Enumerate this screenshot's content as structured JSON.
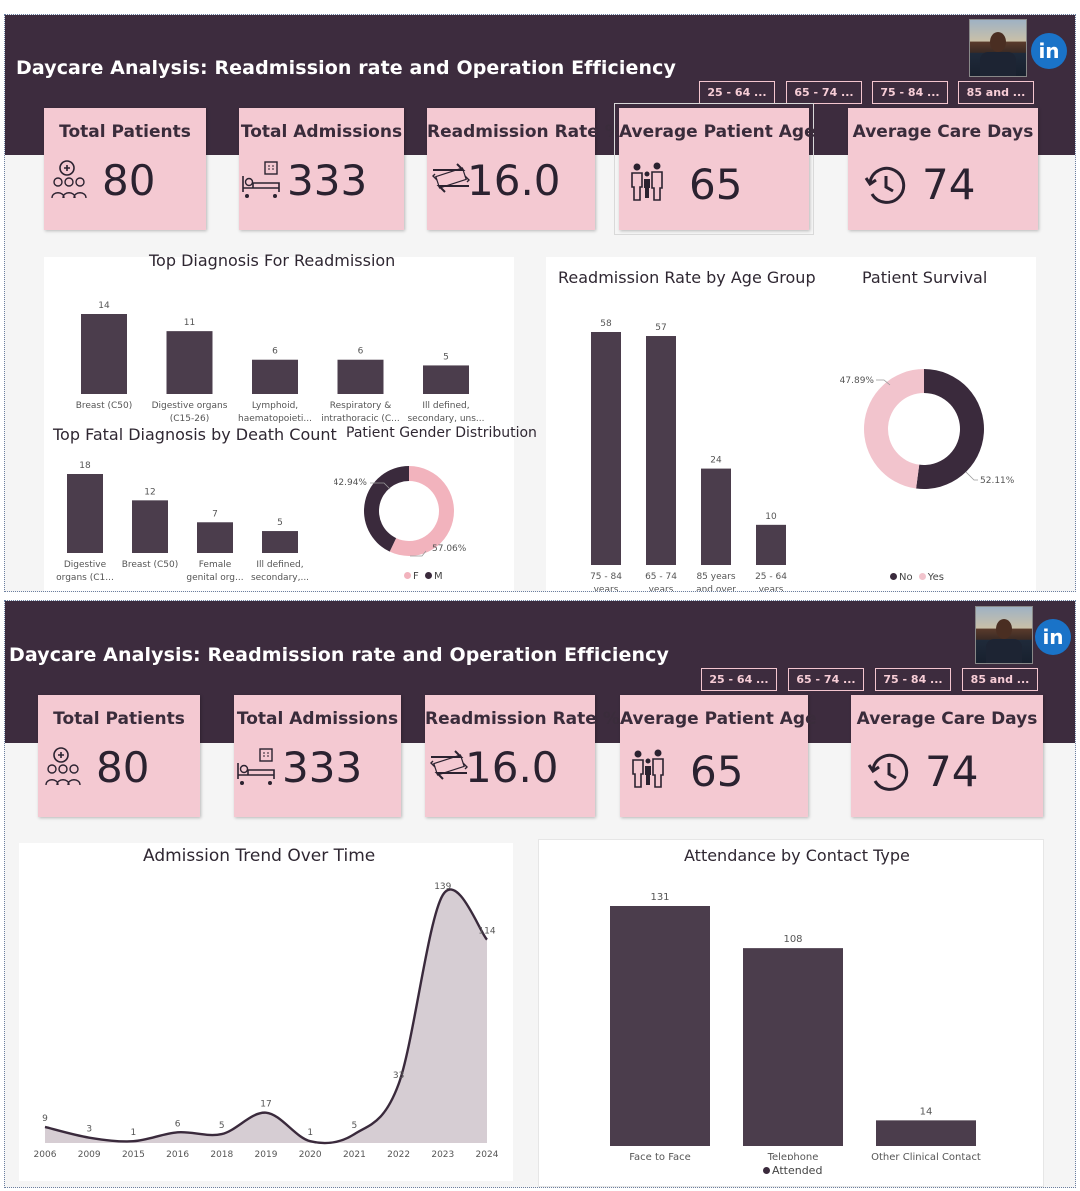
{
  "dashboard": {
    "title": "Daycare Analysis: Readmission rate and Operation Efficiency",
    "linkedin_label": "in",
    "slicers": [
      "25 - 64 ...",
      "65 - 74 ...",
      "75 - 84 ...",
      "85 and ..."
    ],
    "kpis": [
      {
        "label": "Total Patients",
        "value": "80",
        "icon": "patients-icon"
      },
      {
        "label": "Total Admissions",
        "value": "333",
        "icon": "hospital-bed-icon"
      },
      {
        "label": "Readmission Rate %",
        "value": "16.0",
        "icon": "exchange-arrows-icon"
      },
      {
        "label": "Average Patient Age",
        "value": "65",
        "icon": "family-icon"
      },
      {
        "label": "Average Care Days",
        "value": "74",
        "icon": "clock-history-icon"
      }
    ],
    "colors": {
      "header": "#3d2c3e",
      "card": "#f4c9d2",
      "bar": "#4b3d4c",
      "dark": "#3a2a3c",
      "pink": "#f2c4cd"
    }
  },
  "chart_data": [
    {
      "type": "bar",
      "title": "Top Diagnosis For Readmission",
      "categories": [
        "Breast (C50)",
        "Digestive organs (C15-26)",
        "Lymphoid, haematopoieti...",
        "Respiratory & intrathoracic (C...",
        "Ill defined, secondary, uns..."
      ],
      "category_lines": [
        [
          "Breast (C50)"
        ],
        [
          "Digestive organs",
          "(C15-26)"
        ],
        [
          "Lymphoid,",
          "haematopoieti..."
        ],
        [
          "Respiratory &",
          "intrathoracic (C..."
        ],
        [
          "Ill defined,",
          "secondary, uns..."
        ]
      ],
      "values": [
        14,
        11,
        6,
        6,
        5
      ]
    },
    {
      "type": "bar",
      "title": "Top Fatal Diagnosis by Death Count",
      "categories": [
        "Digestive organs (C1...",
        "Breast (C50)",
        "Female genital org...",
        "Ill defined, secondary,..."
      ],
      "category_lines": [
        [
          "Digestive",
          "organs (C1..."
        ],
        [
          "Breast (C50)"
        ],
        [
          "Female",
          "genital org..."
        ],
        [
          "Ill defined,",
          "secondary,..."
        ]
      ],
      "values": [
        18,
        12,
        7,
        5
      ]
    },
    {
      "type": "pie",
      "title": "Patient Gender Distribution",
      "labels": [
        "F",
        "M"
      ],
      "values": [
        57.06,
        42.94
      ],
      "value_labels": [
        "57.06%",
        "42.94%"
      ],
      "colors": [
        "#f2b3bd",
        "#3a2a3c"
      ]
    },
    {
      "type": "bar",
      "title": "Readmission Rate by Age Group",
      "categories": [
        "75 - 84 years",
        "65 - 74 years",
        "85 years and over",
        "25 - 64 years"
      ],
      "category_lines": [
        [
          "75 - 84",
          "years"
        ],
        [
          "65 - 74",
          "years"
        ],
        [
          "85 years",
          "and over"
        ],
        [
          "25 - 64",
          "years"
        ]
      ],
      "values": [
        58,
        57,
        24,
        10
      ]
    },
    {
      "type": "pie",
      "title": "Patient Survival",
      "labels": [
        "No",
        "Yes"
      ],
      "values": [
        52.11,
        47.89
      ],
      "value_labels": [
        "52.11%",
        "47.89%"
      ],
      "colors": [
        "#3a2a3c",
        "#f2c4cd"
      ]
    },
    {
      "type": "area",
      "title": "Admission Trend Over Time",
      "x": [
        "2006",
        "2009",
        "2015",
        "2016",
        "2018",
        "2019",
        "2020",
        "2021",
        "2022",
        "2023",
        "2024"
      ],
      "values": [
        9,
        3,
        1,
        6,
        5,
        17,
        1,
        5,
        33,
        139,
        114
      ],
      "point_labels": [
        "9",
        "3",
        "1",
        "6",
        "5",
        "17",
        "1",
        "5",
        "33",
        "139",
        "114"
      ]
    },
    {
      "type": "bar",
      "title": "Attendance by Contact Type",
      "categories": [
        "Face to Face",
        "Telephone",
        "Other Clinical Contact"
      ],
      "values": [
        131,
        108,
        14
      ],
      "legend": [
        "Attended"
      ]
    }
  ]
}
